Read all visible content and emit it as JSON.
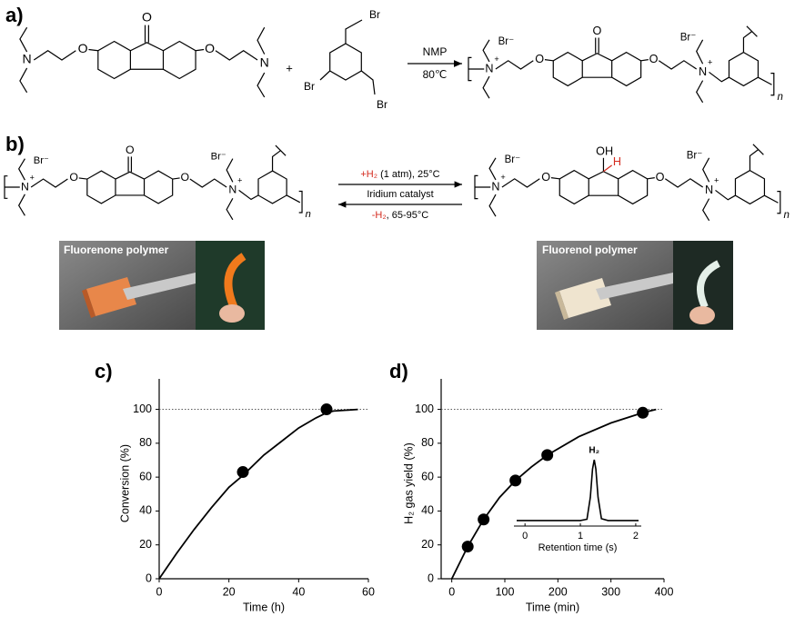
{
  "panel_labels": [
    "a)",
    "b)",
    "c)",
    "d)"
  ],
  "scheme_a": {
    "monomer": {
      "amine_left": "N",
      "ether_left": "O",
      "carbonyl": "O",
      "ether_right": "O",
      "amine_right": "N"
    },
    "plus": "+",
    "linker": {
      "bromines": [
        "Br",
        "Br",
        "Br"
      ]
    },
    "reagent": "NMP",
    "temperature": "80℃",
    "product": {
      "amine_left": "N",
      "charge_left": "+",
      "anion_left": "Br⁻",
      "ether_left": "O",
      "carbonyl": "O",
      "ether_right": "O",
      "amine_right": "N",
      "charge_right": "+",
      "anion_right": "Br⁻",
      "repeat": "n"
    }
  },
  "scheme_b": {
    "fluorenone": {
      "amine_left": "N",
      "charge_left": "+",
      "anion_left": "Br⁻",
      "ether_left": "O",
      "carbonyl": "O",
      "ether_right": "O",
      "amine_right": "N",
      "charge_right": "+",
      "anion_right": "Br⁻",
      "repeat": "n"
    },
    "fluorenol": {
      "amine_left": "N",
      "charge_left": "+",
      "anion_left": "Br⁻",
      "ether_left": "O",
      "hydroxyl": "OH",
      "hydrogen": "H",
      "ether_right": "O",
      "amine_right": "N",
      "charge_right": "+",
      "anion_right": "Br⁻",
      "repeat": "n"
    },
    "forward_gas": "+H₂",
    "forward_conditions": " (1 atm), 25°C",
    "catalyst": "Iridium catalyst",
    "reverse_gas": "-H₂",
    "reverse_conditions": ", 65-95°C",
    "photo_left": "Fluorenone polymer",
    "photo_right": "Fluorenol polymer"
  },
  "chart_data": [
    {
      "type": "scatter",
      "xlabel": "Time (h)",
      "ylabel": "Conversion (%)",
      "xlim": [
        0,
        60
      ],
      "ylim": [
        0,
        118
      ],
      "xticks": [
        0,
        20,
        40,
        60
      ],
      "yticks": [
        0,
        20,
        40,
        60,
        80,
        100
      ],
      "reference_line": 100,
      "series": [
        {
          "marker": "line",
          "color": "#000000",
          "x": [
            0,
            5,
            10,
            15,
            20,
            24,
            30,
            35,
            40,
            45,
            48,
            50,
            57
          ],
          "values": [
            0,
            15,
            29,
            42,
            54,
            61,
            73,
            81,
            89,
            95,
            98,
            99,
            100
          ]
        },
        {
          "marker": "circle",
          "color": "#000000",
          "x": [
            24,
            48
          ],
          "values": [
            63,
            100
          ]
        }
      ]
    },
    {
      "type": "scatter",
      "xlabel": "Time (min)",
      "ylabel": "H₂ gas yield (%)",
      "xlim": [
        -20,
        400
      ],
      "ylim": [
        0,
        118
      ],
      "xticks": [
        0,
        100,
        200,
        300,
        400
      ],
      "yticks": [
        0,
        20,
        40,
        60,
        80,
        100
      ],
      "reference_line": 100,
      "series": [
        {
          "marker": "line",
          "color": "#000000",
          "x": [
            0,
            30,
            60,
            90,
            120,
            150,
            180,
            240,
            300,
            340,
            360,
            385
          ],
          "values": [
            0,
            19,
            35,
            48,
            58,
            66,
            73,
            84,
            92,
            96,
            98,
            100
          ]
        },
        {
          "marker": "circle",
          "color": "#000000",
          "x": [
            30,
            60,
            120,
            180,
            360
          ],
          "values": [
            19,
            35,
            58,
            73,
            98
          ]
        }
      ],
      "inset": {
        "label": "H₂",
        "xlabel": "Retention time (s)",
        "xlim": [
          -0.2,
          2.1
        ],
        "ylim": [
          0,
          100
        ],
        "xticks": [
          0,
          1,
          2
        ],
        "x": [
          -0.15,
          0.5,
          1.0,
          1.12,
          1.18,
          1.22,
          1.25,
          1.28,
          1.32,
          1.38,
          1.5,
          2.05
        ],
        "values": [
          3,
          3,
          3,
          5,
          40,
          85,
          100,
          85,
          40,
          6,
          3,
          3
        ]
      }
    }
  ]
}
